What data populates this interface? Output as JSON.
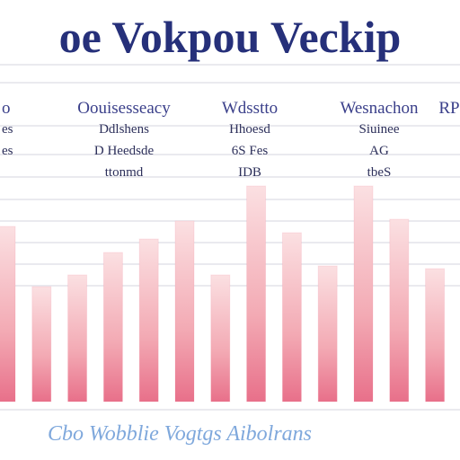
{
  "header": {
    "columns": [
      {
        "title": "o",
        "lines": [
          "es",
          "es"
        ]
      },
      {
        "title": "Oouisesseacy",
        "lines": [
          "Ddlshens",
          "D Heedsde",
          "ttonmd"
        ]
      },
      {
        "title": "Wdsstto",
        "lines": [
          "Hhoesd",
          "6S Fes",
          "IDB"
        ]
      },
      {
        "title": "Wesnachon",
        "lines": [
          "Siuinee",
          "AG",
          "tbeS"
        ]
      },
      {
        "title": "RP",
        "lines": []
      }
    ]
  },
  "chart_data": {
    "type": "bar",
    "title": "oe Vokpou Veckip",
    "footer": "Cbo Wobblie Vogtgs Aibolrans",
    "values": [
      195,
      128,
      141,
      166,
      181,
      201,
      141,
      240,
      188,
      151,
      240,
      203,
      148
    ],
    "color": "#e8708a"
  }
}
